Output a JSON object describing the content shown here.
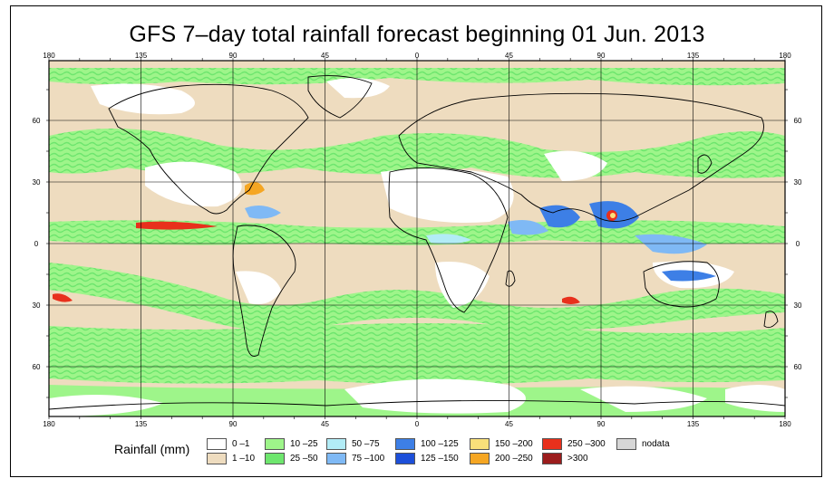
{
  "title": "GFS 7–day total rainfall forecast beginning 01 Jun. 2013",
  "axes": {
    "top_labels": [
      "180",
      "135",
      "90",
      "45",
      "0",
      "45",
      "90",
      "135",
      "180"
    ],
    "bottom_labels": [
      "180",
      "135",
      "90",
      "45",
      "0",
      "45",
      "90",
      "135",
      "180"
    ],
    "left_labels": [
      "60",
      "30",
      "0",
      "30",
      "60"
    ],
    "right_labels": [
      "60",
      "30",
      "0",
      "30",
      "60"
    ]
  },
  "legend": {
    "title": "Rainfall (mm)",
    "items": [
      {
        "label": "0 –1",
        "color": "#ffffff"
      },
      {
        "label": "1 –10",
        "color": "#eedcbf"
      },
      {
        "label": "10 –25",
        "color": "#9ef58a"
      },
      {
        "label": "25 –50",
        "color": "#6ee66e"
      },
      {
        "label": "50 –75",
        "color": "#b2ecf6"
      },
      {
        "label": "75 –100",
        "color": "#7fb9f5"
      },
      {
        "label": "100 –125",
        "color": "#3d7fe6"
      },
      {
        "label": "125 –150",
        "color": "#1d4fd9"
      },
      {
        "label": "150 –200",
        "color": "#f9e07a"
      },
      {
        "label": "200 –250",
        "color": "#f5a623"
      },
      {
        "label": "250 –300",
        "color": "#e8301c"
      },
      {
        "label": ">300",
        "color": "#9b1c1c"
      },
      {
        "label": "nodata",
        "color": "#d6d6d6"
      }
    ]
  },
  "colors": {
    "ocean_dry": "#eedcbf",
    "rain_light": "#9ef58a",
    "rain_moderate": "#6ee66e",
    "land_dry": "#ffffff",
    "coast": "#000000",
    "grid": "#000000"
  }
}
